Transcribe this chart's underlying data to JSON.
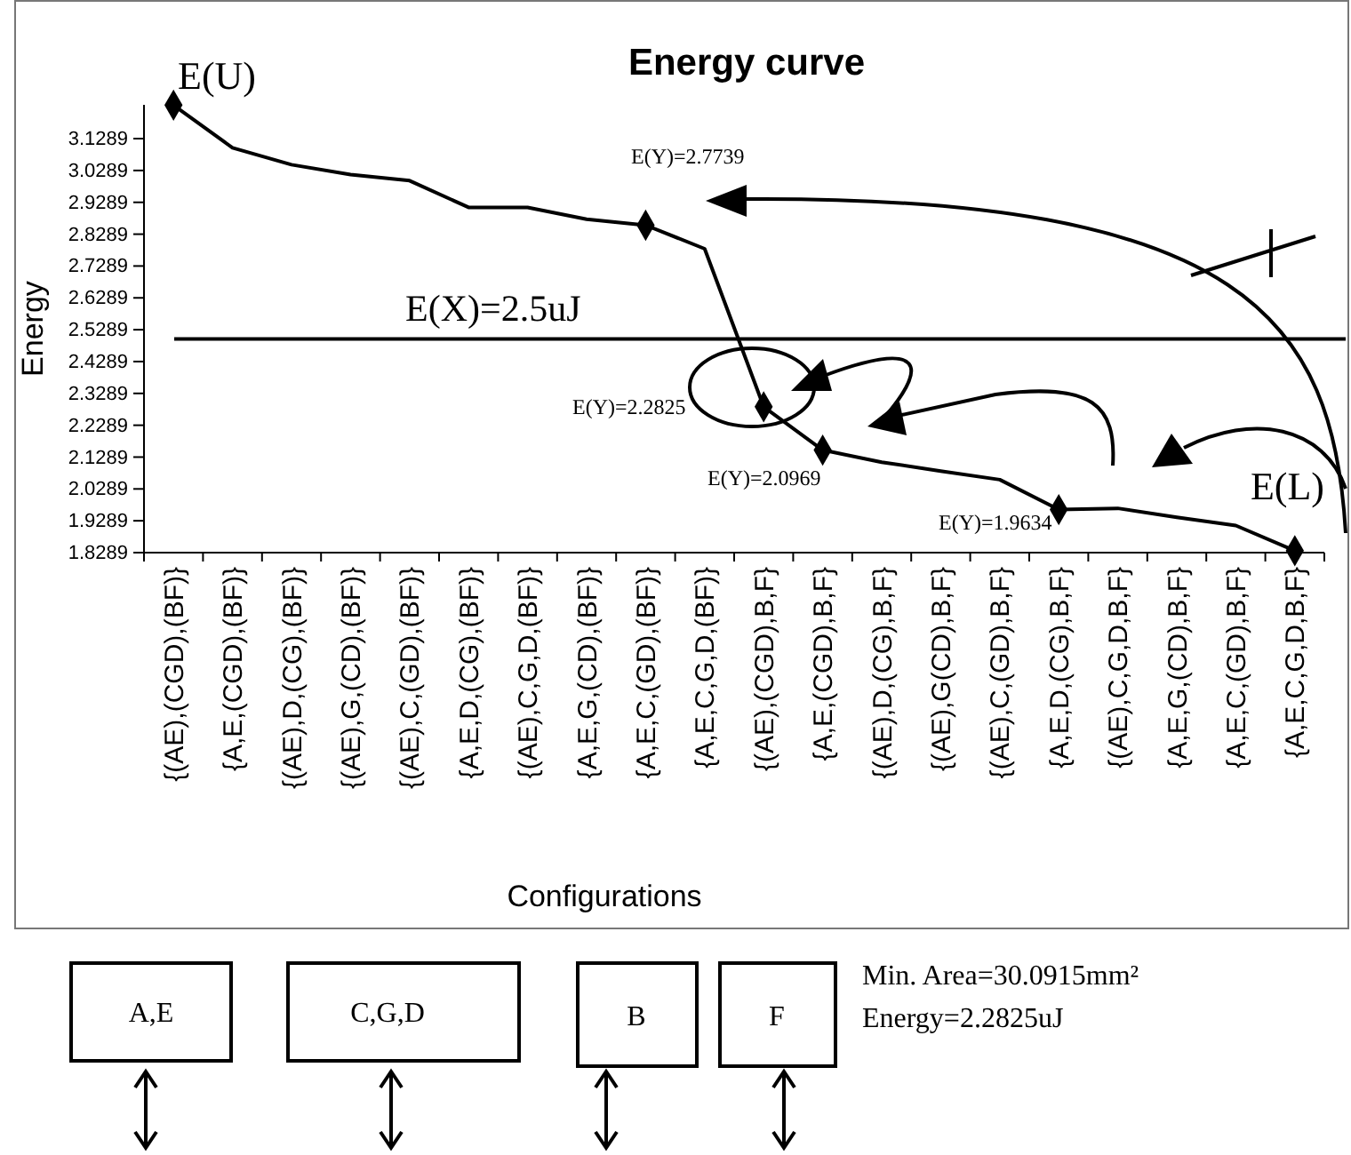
{
  "chart_data": {
    "type": "line",
    "title": "Energy curve",
    "xlabel": "Configurations",
    "ylabel": "Energy",
    "categories": [
      "{(AE),(CGD),(BF)}",
      "{A,E,(CGD),(BF)}",
      "{(AE),D,(CG),(BF)}",
      "{(AE),G,(CD),(BF)}",
      "{(AE),C,(GD),(BF)}",
      "{A,E,D,(CG),(BF)}",
      "{(AE),C,G,D,(BF)}",
      "{A,E,G,(CD),(BF)}",
      "{A,E,C,(GD),(BF)}",
      "{A,E,C,G,D,(BF)}",
      "{(AE),(CGD),B,F}",
      "{A,E,(CGD),B,F}",
      "{(AE),D,(CG),B,F}",
      "{(AE),G(CD),B,F}",
      "{(AE),C,(GD),B,F}",
      "{A,E,D,(CG),B,F}",
      "{(AE),C,G,D,B,F}",
      "{A,E,G,(CD),B,F}",
      "{A,E,C,(GD),B,F}",
      "{A,E,C,G,D,B,F}"
    ],
    "series": [
      {
        "color": "#000000",
        "values": [
          3.234,
          3.1,
          3.047,
          3.016,
          2.997,
          2.913,
          2.913,
          2.876,
          2.857,
          2.783,
          2.287,
          2.151,
          2.113,
          2.085,
          2.058,
          1.964,
          1.968,
          1.94,
          1.914,
          1.835
        ]
      },
      {
        "type": "scatter",
        "color": "#000000",
        "marker": "diamond",
        "values": [
          3.234,
          null,
          null,
          null,
          null,
          null,
          null,
          null,
          2.857,
          null,
          2.287,
          2.151,
          null,
          null,
          null,
          1.964,
          null,
          null,
          null,
          1.835
        ]
      }
    ],
    "ylim": [
      1.8289,
      3.235
    ],
    "yticks": [
      1.8289,
      1.9289,
      2.0289,
      2.1289,
      2.2289,
      2.3289,
      2.4289,
      2.5289,
      2.6289,
      2.7289,
      2.8289,
      2.9289,
      3.0289,
      3.1289
    ],
    "grid": false,
    "ref_lines": [
      {
        "axis": "y",
        "value": 2.5,
        "label": "E(X)=2.5uJ",
        "color": "#000000"
      }
    ],
    "annotations": [
      "E(U)",
      "E(Y)=2.7739",
      "E(Y)=2.2825",
      "E(Y)=2.0969",
      "E(Y)=1.9634",
      "E(L)",
      "A,E",
      "C,G,D",
      "B",
      "F",
      "Min. Area=30.0915mm²",
      "Energy=2.2825uJ"
    ]
  }
}
